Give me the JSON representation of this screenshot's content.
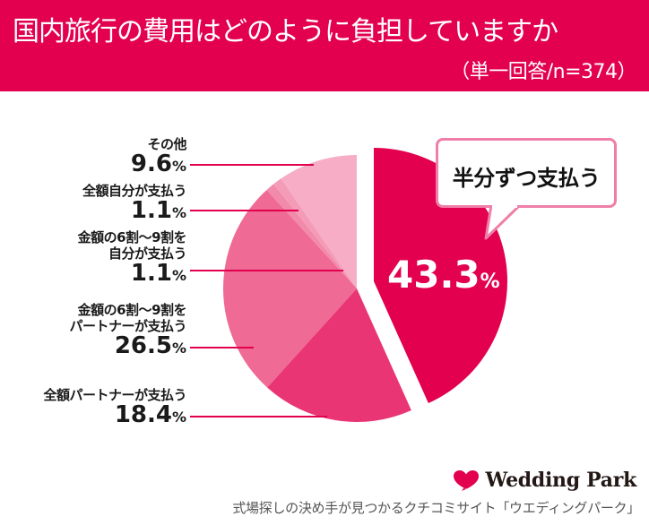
{
  "header": {
    "title": "国内旅行の費用はどのように負担していますか",
    "subtitle": "（単一回答/n=374）",
    "background_color": "#e2004f"
  },
  "callout": {
    "label": "半分ずつ支払う",
    "border_color": "#ef7fa8"
  },
  "highlight": {
    "value": "43.3",
    "unit": "%"
  },
  "labels": [
    {
      "name_lines": [
        "その他"
      ],
      "value": "9.6",
      "unit": "%"
    },
    {
      "name_lines": [
        "全額自分が支払う"
      ],
      "value": "1.1",
      "unit": "%"
    },
    {
      "name_lines": [
        "金額の6割〜9割を",
        "自分が支払う"
      ],
      "value": "1.1",
      "unit": "%"
    },
    {
      "name_lines": [
        "金額の6割〜9割を",
        "パートナーが支払う"
      ],
      "value": "26.5",
      "unit": "%"
    },
    {
      "name_lines": [
        "全額パートナーが支払う"
      ],
      "value": "18.4",
      "unit": "%"
    }
  ],
  "footer": {
    "logo_text": "Wedding Park",
    "logo_icon": "heart-icon",
    "tagline": "式場探しの決め手が見つかるクチコミサイト「ウエディングパーク」"
  },
  "colors": {
    "leader_line": "#e2004f",
    "text": "#1a1a1a"
  },
  "chart_data": {
    "type": "pie",
    "title": "国内旅行の費用はどのように負担していますか",
    "subtitle": "（単一回答/n=374）",
    "start_angle_deg": 0,
    "direction": "clockwise",
    "categories": [
      "半分ずつ支払う",
      "全額パートナーが支払う",
      "金額の6割〜9割をパートナーが支払う",
      "金額の6割〜9割を自分が支払う",
      "全額自分が支払う",
      "その他"
    ],
    "values": [
      43.3,
      18.4,
      26.5,
      1.1,
      1.1,
      9.6
    ],
    "colors": [
      "#e2004f",
      "#ea3575",
      "#ef6a94",
      "#f28aaa",
      "#f49bb7",
      "#f6adc5"
    ],
    "exploded": [
      "半分ずつ支払う"
    ],
    "unit": "%",
    "legend": "none (direct labels on left with leader lines)"
  }
}
